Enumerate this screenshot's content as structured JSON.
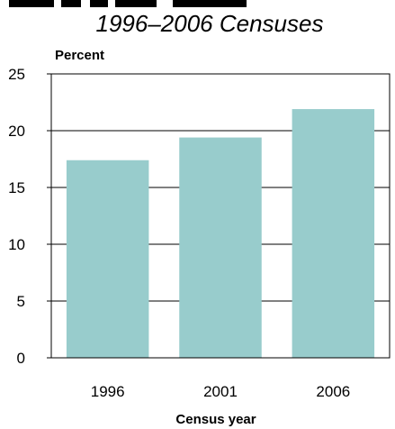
{
  "chart_data": {
    "type": "bar",
    "title": "",
    "subtitle": "1996–2006 Censuses",
    "xlabel": "Census year",
    "ylabel": "Percent",
    "categories": [
      "1996",
      "2001",
      "2006"
    ],
    "values": [
      17.4,
      19.4,
      21.9
    ],
    "ylim": [
      0,
      25
    ],
    "yticks": [
      0,
      5,
      10,
      15,
      20,
      25
    ],
    "grid": true,
    "legend": "none",
    "colors": {
      "bar": "#98cccc",
      "grid": "#000000",
      "frame": "#000000"
    }
  }
}
